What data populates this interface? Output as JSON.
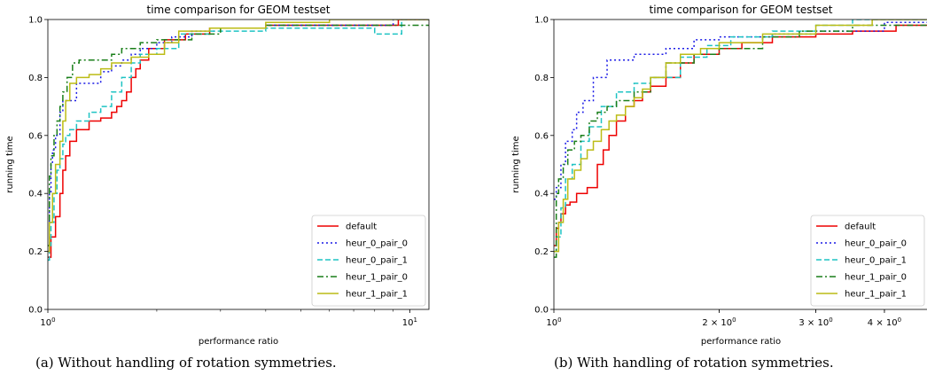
{
  "captions": {
    "a": "(a) Without handling of rotation symmetries.",
    "b": "(b) With handling of rotation symmetries."
  },
  "colors": {
    "default": "#ee0000",
    "heur_0_pair_0": "#1a1ae6",
    "heur_0_pair_1": "#1ec3c3",
    "heur_1_pair_0": "#1a7f1a",
    "heur_1_pair_1": "#bcbc16"
  },
  "chart_data": [
    {
      "type": "line",
      "step": true,
      "title": "time comparison for GEOM testset",
      "xlabel": "performance ratio",
      "ylabel": "running time",
      "xscale": "log",
      "xlim": [
        1,
        11.3
      ],
      "ylim": [
        0,
        1.0
      ],
      "xticks": [
        {
          "value": 1,
          "base": "10",
          "exp": "0"
        },
        {
          "value": 10,
          "base": "10",
          "exp": "1"
        }
      ],
      "yticks": [
        "0.0",
        "0.2",
        "0.4",
        "0.6",
        "0.8",
        "1.0"
      ],
      "legend_position": "lower-right",
      "series": [
        {
          "name": "default",
          "key": "default",
          "dash": "",
          "x": [
            1.0,
            1.02,
            1.05,
            1.08,
            1.1,
            1.12,
            1.15,
            1.2,
            1.3,
            1.4,
            1.5,
            1.55,
            1.6,
            1.65,
            1.7,
            1.75,
            1.8,
            1.9,
            2.1,
            2.4,
            2.8,
            4.0,
            6.0,
            9.3,
            11.3
          ],
          "y": [
            0.18,
            0.25,
            0.32,
            0.4,
            0.48,
            0.53,
            0.58,
            0.62,
            0.65,
            0.66,
            0.68,
            0.7,
            0.72,
            0.75,
            0.8,
            0.83,
            0.86,
            0.9,
            0.93,
            0.95,
            0.97,
            0.98,
            0.98,
            1.0,
            1.0
          ]
        },
        {
          "name": "heur_0_pair_0",
          "key": "heur_0_pair_0",
          "dash": "2,3",
          "x": [
            1.0,
            1.01,
            1.02,
            1.03,
            1.05,
            1.08,
            1.1,
            1.2,
            1.4,
            1.5,
            1.6,
            1.7,
            1.8,
            2.0,
            2.2,
            2.5,
            2.9,
            4.0,
            6.0,
            9.0,
            11.3
          ],
          "y": [
            0.2,
            0.4,
            0.5,
            0.55,
            0.6,
            0.68,
            0.72,
            0.78,
            0.82,
            0.84,
            0.86,
            0.88,
            0.9,
            0.92,
            0.94,
            0.96,
            0.97,
            0.98,
            0.98,
            1.0,
            1.0
          ]
        },
        {
          "name": "heur_0_pair_1",
          "key": "heur_0_pair_1",
          "dash": "6,3",
          "x": [
            1.0,
            1.01,
            1.02,
            1.04,
            1.06,
            1.08,
            1.1,
            1.12,
            1.15,
            1.2,
            1.3,
            1.4,
            1.5,
            1.6,
            1.7,
            1.8,
            2.0,
            2.3,
            2.8,
            4.0,
            8.0,
            9.5,
            11.3
          ],
          "y": [
            0.17,
            0.22,
            0.3,
            0.4,
            0.48,
            0.52,
            0.57,
            0.6,
            0.62,
            0.65,
            0.68,
            0.7,
            0.75,
            0.8,
            0.85,
            0.88,
            0.9,
            0.95,
            0.96,
            0.97,
            0.95,
            1.0,
            1.0
          ]
        },
        {
          "name": "heur_1_pair_0",
          "key": "heur_1_pair_0",
          "dash": "7,3,2,3",
          "x": [
            1.0,
            1.01,
            1.02,
            1.04,
            1.06,
            1.08,
            1.1,
            1.13,
            1.17,
            1.22,
            1.3,
            1.5,
            1.6,
            1.8,
            2.0,
            2.5,
            3.0,
            4.0,
            7.0,
            11.3
          ],
          "y": [
            0.22,
            0.46,
            0.53,
            0.6,
            0.65,
            0.7,
            0.75,
            0.8,
            0.85,
            0.86,
            0.86,
            0.88,
            0.9,
            0.92,
            0.93,
            0.95,
            0.97,
            0.98,
            0.98,
            0.98
          ]
        },
        {
          "name": "heur_1_pair_1",
          "key": "heur_1_pair_1",
          "dash": "",
          "x": [
            1.0,
            1.01,
            1.03,
            1.05,
            1.08,
            1.1,
            1.12,
            1.15,
            1.2,
            1.3,
            1.4,
            1.5,
            1.7,
            1.9,
            2.1,
            2.3,
            2.8,
            4.0,
            6.0,
            11.3
          ],
          "y": [
            0.2,
            0.3,
            0.4,
            0.5,
            0.58,
            0.65,
            0.72,
            0.78,
            0.8,
            0.81,
            0.83,
            0.85,
            0.87,
            0.88,
            0.92,
            0.96,
            0.97,
            0.99,
            1.0,
            1.0
          ]
        }
      ]
    },
    {
      "type": "line",
      "step": true,
      "title": "time comparison for GEOM testset",
      "xlabel": "performance ratio",
      "ylabel": "running time",
      "xscale": "log",
      "xlim": [
        1,
        4.8
      ],
      "ylim": [
        0,
        1.0
      ],
      "xticks": [
        {
          "value": 1,
          "base": "10",
          "exp": "0"
        },
        {
          "value": 2,
          "coef": "2 × ",
          "base": "10",
          "exp": "0"
        },
        {
          "value": 3,
          "coef": "3 × ",
          "base": "10",
          "exp": "0"
        },
        {
          "value": 4,
          "coef": "4 × ",
          "base": "10",
          "exp": "0"
        }
      ],
      "yticks": [
        "0.0",
        "0.2",
        "0.4",
        "0.6",
        "0.8",
        "1.0"
      ],
      "legend_position": "lower-right",
      "series": [
        {
          "name": "default",
          "key": "default",
          "dash": "",
          "x": [
            1.0,
            1.01,
            1.02,
            1.03,
            1.05,
            1.07,
            1.1,
            1.15,
            1.2,
            1.23,
            1.26,
            1.3,
            1.35,
            1.4,
            1.45,
            1.5,
            1.6,
            1.7,
            1.8,
            2.0,
            2.2,
            2.5,
            3.0,
            3.5,
            4.2,
            4.8
          ],
          "y": [
            0.22,
            0.28,
            0.3,
            0.33,
            0.36,
            0.37,
            0.4,
            0.42,
            0.5,
            0.55,
            0.6,
            0.65,
            0.7,
            0.72,
            0.75,
            0.77,
            0.8,
            0.85,
            0.88,
            0.9,
            0.92,
            0.94,
            0.95,
            0.96,
            0.98,
            0.98
          ]
        },
        {
          "name": "heur_0_pair_0",
          "key": "heur_0_pair_0",
          "dash": "2,3",
          "x": [
            1.0,
            1.01,
            1.03,
            1.05,
            1.08,
            1.1,
            1.13,
            1.18,
            1.25,
            1.4,
            1.6,
            1.8,
            2.0,
            2.5,
            3.0,
            4.0,
            4.8
          ],
          "y": [
            0.38,
            0.42,
            0.5,
            0.58,
            0.62,
            0.68,
            0.72,
            0.8,
            0.86,
            0.88,
            0.9,
            0.93,
            0.94,
            0.95,
            0.96,
            0.99,
            1.0
          ]
        },
        {
          "name": "heur_0_pair_1",
          "key": "heur_0_pair_1",
          "dash": "6,3",
          "x": [
            1.0,
            1.01,
            1.03,
            1.05,
            1.08,
            1.12,
            1.16,
            1.22,
            1.3,
            1.4,
            1.5,
            1.7,
            1.9,
            2.1,
            2.5,
            3.0,
            3.5,
            4.8
          ],
          "y": [
            0.2,
            0.25,
            0.35,
            0.45,
            0.5,
            0.58,
            0.63,
            0.7,
            0.75,
            0.78,
            0.8,
            0.87,
            0.91,
            0.94,
            0.96,
            0.98,
            1.0,
            1.0
          ]
        },
        {
          "name": "heur_1_pair_0",
          "key": "heur_1_pair_0",
          "dash": "7,3,2,3",
          "x": [
            1.0,
            1.01,
            1.02,
            1.04,
            1.06,
            1.09,
            1.12,
            1.16,
            1.2,
            1.25,
            1.3,
            1.4,
            1.5,
            1.6,
            1.8,
            2.0,
            2.4,
            2.8,
            3.5,
            4.8
          ],
          "y": [
            0.18,
            0.4,
            0.45,
            0.5,
            0.55,
            0.58,
            0.6,
            0.65,
            0.68,
            0.7,
            0.72,
            0.75,
            0.8,
            0.85,
            0.88,
            0.9,
            0.94,
            0.96,
            0.98,
            1.0
          ]
        },
        {
          "name": "heur_1_pair_1",
          "key": "heur_1_pair_1",
          "dash": "",
          "x": [
            1.0,
            1.02,
            1.04,
            1.06,
            1.09,
            1.12,
            1.15,
            1.18,
            1.22,
            1.26,
            1.3,
            1.35,
            1.4,
            1.45,
            1.5,
            1.6,
            1.7,
            1.85,
            2.0,
            2.4,
            3.0,
            3.8,
            4.8
          ],
          "y": [
            0.2,
            0.3,
            0.38,
            0.45,
            0.48,
            0.52,
            0.55,
            0.58,
            0.62,
            0.65,
            0.67,
            0.7,
            0.73,
            0.76,
            0.8,
            0.85,
            0.88,
            0.9,
            0.92,
            0.95,
            0.98,
            1.0,
            1.0
          ]
        }
      ]
    }
  ]
}
